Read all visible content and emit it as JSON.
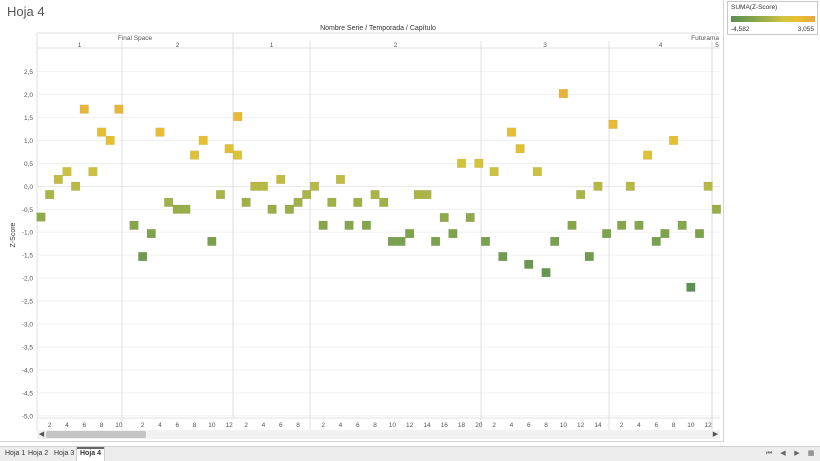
{
  "sheet_title": "Hoja 4",
  "colors": {
    "low": "#5f8d55",
    "mid": "#a7b44c",
    "high": "#e7bf36",
    "grid": "#ececec",
    "divider": "#d6d6d6"
  },
  "chart": {
    "column_title": "Nombre Serie / Temporada / Capítulo",
    "ylabel": "Z-Score",
    "series_names": [
      "Final Space",
      "Futurama"
    ],
    "yticks": [
      "2,5",
      "2,0",
      "1,5",
      "1,0",
      "0,5",
      "0,0",
      "-0,5",
      "-1,0",
      "-1,5",
      "-2,0",
      "-2,5",
      "-3,0",
      "-3,5",
      "-4,0",
      "-4,5",
      "-5,0"
    ],
    "seasons": [
      {
        "series": "Final Space",
        "label": "1",
        "episodes": 10
      },
      {
        "series": "Final Space",
        "label": "2",
        "episodes": 13
      },
      {
        "series": "Futurama",
        "label": "1",
        "episodes": 9
      },
      {
        "series": "Futurama",
        "label": "2",
        "episodes": 20
      },
      {
        "series": "Futurama",
        "label": "3",
        "episodes": 15
      },
      {
        "series": "Futurama",
        "label": "4",
        "episodes": 12
      },
      {
        "series": "Futurama",
        "label": "5",
        "episodes": 1
      }
    ],
    "xtick_labels": [
      [
        "2",
        "4",
        "6",
        "8",
        "10"
      ],
      [
        "2",
        "4",
        "6",
        "8",
        "10",
        "12"
      ],
      [
        "2",
        "4",
        "6",
        "8"
      ],
      [
        "2",
        "4",
        "6",
        "8",
        "10",
        "12",
        "14",
        "16",
        "18",
        "20"
      ],
      [
        "2",
        "4",
        "6",
        "8",
        "10",
        "12",
        "14"
      ],
      [
        "2",
        "4",
        "6",
        "8",
        "10",
        "12"
      ],
      []
    ]
  },
  "legend": {
    "title": "SUMA(Z-Score)",
    "min": "-4,582",
    "max": "3,055"
  },
  "tabs": [
    "Hoja 1",
    "Hoja 2",
    "Hoja 3",
    "Hoja 4"
  ],
  "active_tab": 3,
  "icons": {
    "scroll_left": "◀",
    "scroll_right": "▶",
    "nav_first": "⏮",
    "nav_prev": "◀",
    "nav_next": "▶",
    "nav_grid": "▦"
  },
  "chart_data": {
    "type": "scatter",
    "title": "",
    "xlabel": "Nombre Serie / Temporada / Capítulo",
    "ylabel": "Z-Score",
    "ylim": [
      -5.1,
      2.8
    ],
    "color_scale": {
      "field": "SUMA(Z-Score)",
      "min": -4.582,
      "max": 3.055
    },
    "series": [
      {
        "name": "Final Space",
        "season": "1",
        "episode": [
          1,
          2,
          3,
          4,
          5,
          6,
          7,
          8,
          9,
          10
        ],
        "values": [
          -0.67,
          -0.18,
          0.15,
          0.32,
          0.0,
          1.68,
          0.32,
          1.18,
          1.0,
          1.68
        ]
      },
      {
        "name": "Final Space",
        "season": "2",
        "episode": [
          1,
          2,
          3,
          4,
          5,
          6,
          7,
          8,
          9,
          10,
          11,
          12,
          13
        ],
        "values": [
          -0.85,
          -1.53,
          -1.03,
          1.18,
          -0.35,
          -0.5,
          -0.5,
          0.68,
          1.0,
          -1.2,
          -0.18,
          0.82,
          1.52
        ]
      },
      {
        "name": "Futurama",
        "season": "1",
        "episode": [
          1,
          2,
          3,
          4,
          5,
          6,
          7,
          8,
          9
        ],
        "values": [
          0.68,
          -0.35,
          0.0,
          0.0,
          -0.5,
          0.15,
          -0.5,
          -0.35,
          -0.18
        ]
      },
      {
        "name": "Futurama",
        "season": "2",
        "episode": [
          1,
          2,
          3,
          4,
          5,
          6,
          7,
          8,
          9,
          10,
          11,
          12,
          13,
          14,
          15,
          16,
          17,
          18,
          19,
          20
        ],
        "values": [
          0.0,
          -0.85,
          -0.35,
          0.15,
          -0.85,
          -0.35,
          -0.85,
          -0.18,
          -0.35,
          -1.2,
          -1.2,
          -1.03,
          -0.18,
          -0.18,
          -1.2,
          -0.68,
          -1.03,
          0.5,
          -0.68,
          0.5
        ]
      },
      {
        "name": "Futurama",
        "season": "3",
        "episode": [
          1,
          2,
          3,
          4,
          5,
          6,
          7,
          8,
          9,
          10,
          11,
          12,
          13,
          14,
          15
        ],
        "values": [
          -1.2,
          0.32,
          -1.53,
          1.18,
          0.82,
          -1.7,
          0.32,
          -1.88,
          -1.2,
          2.02,
          -0.85,
          -0.18,
          -1.53,
          0.0,
          -1.03
        ]
      },
      {
        "name": "Futurama",
        "season": "4",
        "episode": [
          1,
          2,
          3,
          4,
          5,
          6,
          7,
          8,
          9,
          10,
          11,
          12
        ],
        "values": [
          1.35,
          -0.85,
          0.0,
          -0.85,
          0.68,
          -1.2,
          -1.03,
          1.0,
          -0.85,
          -2.2,
          -1.03,
          0.0
        ]
      },
      {
        "name": "Futurama",
        "season": "5",
        "episode": [
          1
        ],
        "values": [
          -0.5
        ]
      }
    ]
  }
}
